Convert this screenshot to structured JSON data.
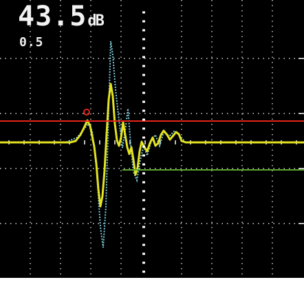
{
  "gain": {
    "value": "43.5",
    "unit": "dB"
  },
  "step": "0.5",
  "colors": {
    "background": "#000000",
    "grid": "#ffffff",
    "gate_a": "#e8241a",
    "gate_b": "#5aa82a",
    "signal": "#e3e322",
    "envelope": "#7fcfe0",
    "cursor": "#ffffff"
  }
}
